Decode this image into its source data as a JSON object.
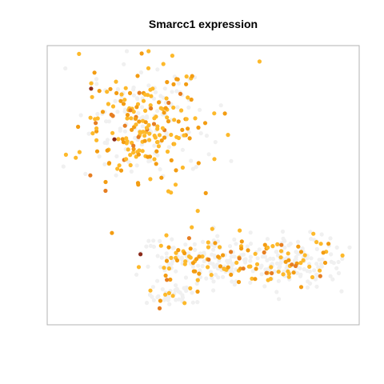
{
  "chart_data": {
    "type": "scatter",
    "title": "Smarcc1 expression",
    "xlabel": "",
    "ylabel": "",
    "axes_visible": false,
    "grid": false,
    "legend": "none",
    "xlim": [
      0,
      1
    ],
    "ylim": [
      0,
      1
    ],
    "color_scale": {
      "zero": "#f0f0f0",
      "low": "#fdb92b",
      "mid": "#f39c12",
      "high": "#e67e22",
      "max": "#8b2a1a"
    },
    "clusters": [
      {
        "name": "upper-left",
        "cx": 0.29,
        "cy": 0.72,
        "rx": 0.21,
        "ry": 0.24,
        "n": 320,
        "expr_frac": 0.58
      },
      {
        "name": "lower-middle",
        "cx": 0.5,
        "cy": 0.22,
        "rx": 0.22,
        "ry": 0.09,
        "n": 170,
        "expr_frac": 0.33
      },
      {
        "name": "lower-right",
        "cx": 0.79,
        "cy": 0.21,
        "rx": 0.18,
        "ry": 0.1,
        "n": 190,
        "expr_frac": 0.3
      },
      {
        "name": "bottom-tail",
        "cx": 0.39,
        "cy": 0.08,
        "rx": 0.08,
        "ry": 0.04,
        "n": 45,
        "expr_frac": 0.2
      }
    ],
    "highlights": [
      {
        "x": 0.11,
        "y": 0.86,
        "level": "max"
      },
      {
        "x": 0.19,
        "y": 0.67,
        "level": "max"
      },
      {
        "x": 0.28,
        "y": 0.24,
        "level": "max"
      }
    ]
  }
}
